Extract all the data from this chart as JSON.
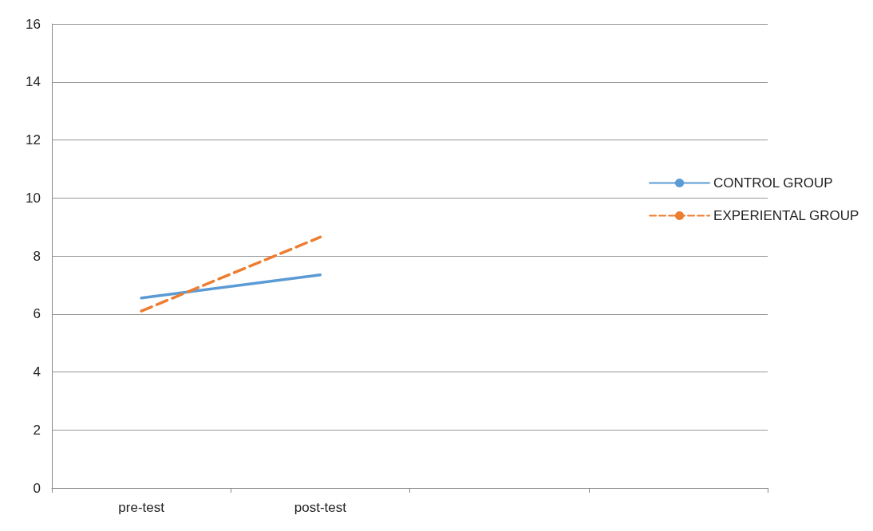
{
  "chart_data": {
    "type": "line",
    "categories": [
      "pre-test",
      "post-test",
      null,
      null
    ],
    "series": [
      {
        "name": "CONTROL GROUP",
        "color": "#5b9bd5",
        "line_style": "solid",
        "values": [
          6.55,
          7.35,
          null,
          null
        ]
      },
      {
        "name": "EXPERIENTAL GROUP",
        "color": "#ed7d31",
        "line_style": "dashed",
        "values": [
          6.1,
          8.65,
          null,
          null
        ]
      }
    ],
    "ylim": [
      0,
      16
    ],
    "yticks": [
      0,
      2,
      4,
      6,
      8,
      10,
      12,
      14,
      16
    ],
    "grid": "y",
    "legend": "right",
    "marker": "none"
  }
}
